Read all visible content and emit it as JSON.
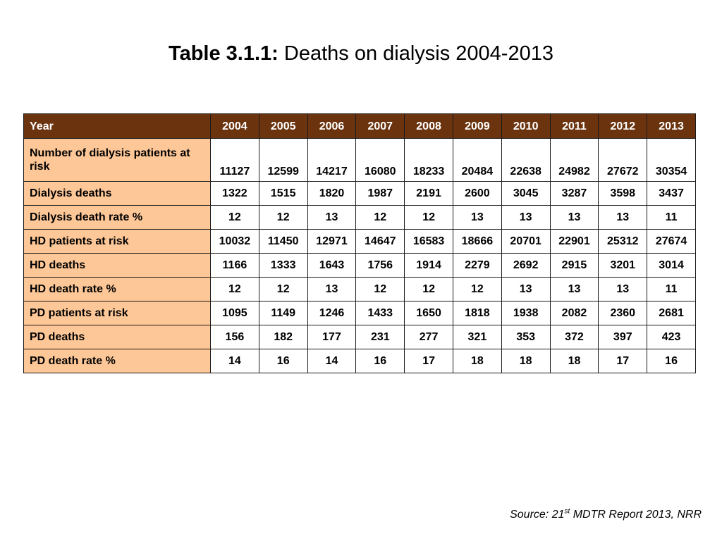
{
  "title": {
    "bold": "Table 3.1.1:",
    "text": " Deaths on dialysis 2004-2013"
  },
  "table": {
    "header_label": "Year",
    "years": [
      "2004",
      "2005",
      "2006",
      "2007",
      "2008",
      "2009",
      "2010",
      "2011",
      "2012",
      "2013"
    ],
    "rows": [
      {
        "label": "Number of dialysis patients at risk",
        "values": [
          "11127",
          "12599",
          "14217",
          "16080",
          "18233",
          "20484",
          "22638",
          "24982",
          "27672",
          "30354"
        ]
      },
      {
        "label": "Dialysis deaths",
        "values": [
          "1322",
          "1515",
          "1820",
          "1987",
          "2191",
          "2600",
          "3045",
          "3287",
          "3598",
          "3437"
        ]
      },
      {
        "label": "Dialysis death rate %",
        "values": [
          "12",
          "12",
          "13",
          "12",
          "12",
          "13",
          "13",
          "13",
          "13",
          "11"
        ]
      },
      {
        "label": "HD patients at risk",
        "values": [
          "10032",
          "11450",
          "12971",
          "14647",
          "16583",
          "18666",
          "20701",
          "22901",
          "25312",
          "27674"
        ]
      },
      {
        "label": "HD deaths",
        "values": [
          "1166",
          "1333",
          "1643",
          "1756",
          "1914",
          "2279",
          "2692",
          "2915",
          "3201",
          "3014"
        ]
      },
      {
        "label": "HD death rate %",
        "values": [
          "12",
          "12",
          "13",
          "12",
          "12",
          "12",
          "13",
          "13",
          "13",
          "11"
        ]
      },
      {
        "label": "PD patients at risk",
        "values": [
          "1095",
          "1149",
          "1246",
          "1433",
          "1650",
          "1818",
          "1938",
          "2082",
          "2360",
          "2681"
        ]
      },
      {
        "label": "PD deaths",
        "values": [
          "156",
          "182",
          "177",
          "231",
          "277",
          "321",
          "353",
          "372",
          "397",
          "423"
        ]
      },
      {
        "label": "PD death rate %",
        "values": [
          "14",
          "16",
          "14",
          "16",
          "17",
          "18",
          "18",
          "18",
          "17",
          "16"
        ]
      }
    ]
  },
  "source": {
    "prefix": "Source: 21",
    "superscript": "st",
    "suffix": " MDTR Report 2013, NRR"
  },
  "colors": {
    "header_bg": "#6b340f",
    "header_text": "#ffffff",
    "label_bg": "#fdc797"
  }
}
